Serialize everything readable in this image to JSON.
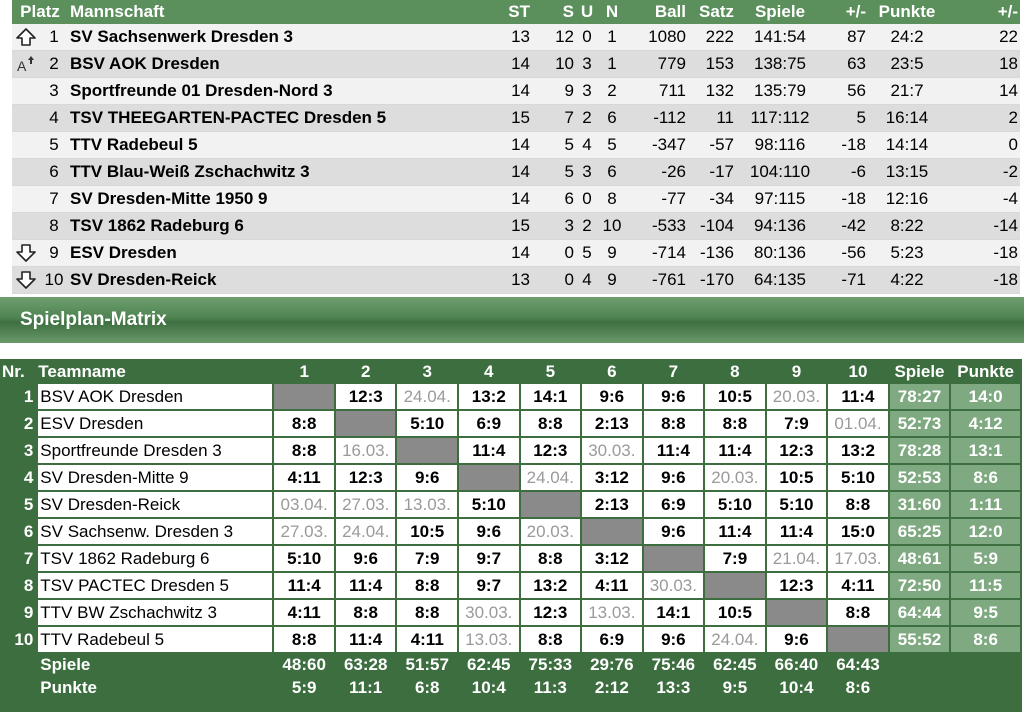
{
  "standings": {
    "headers": [
      "Platz",
      "Mannschaft",
      "ST",
      "S",
      "U",
      "N",
      "Ball",
      "Satz",
      "Spiele",
      "+/-",
      "Punkte",
      "+/-"
    ],
    "rows": [
      {
        "trend": "arrow-up-icon",
        "platz": "1",
        "team": "SV Sachsenwerk Dresden 3",
        "st": "13",
        "s": "12",
        "u": "0",
        "n": "1",
        "ball": "1080",
        "satz": "222",
        "spiele": "141:54",
        "diff": "87",
        "punkte": "24:2",
        "pdiff": "22"
      },
      {
        "trend": "promotion-relegation-icon",
        "platz": "2",
        "team": "BSV AOK Dresden",
        "st": "14",
        "s": "10",
        "u": "3",
        "n": "1",
        "ball": "779",
        "satz": "153",
        "spiele": "138:75",
        "diff": "63",
        "punkte": "23:5",
        "pdiff": "18"
      },
      {
        "trend": "",
        "platz": "3",
        "team": "Sportfreunde 01 Dresden-Nord 3",
        "st": "14",
        "s": "9",
        "u": "3",
        "n": "2",
        "ball": "711",
        "satz": "132",
        "spiele": "135:79",
        "diff": "56",
        "punkte": "21:7",
        "pdiff": "14"
      },
      {
        "trend": "",
        "platz": "4",
        "team": "TSV THEEGARTEN-PACTEC Dresden 5",
        "st": "15",
        "s": "7",
        "u": "2",
        "n": "6",
        "ball": "-112",
        "satz": "11",
        "spiele": "117:112",
        "diff": "5",
        "punkte": "16:14",
        "pdiff": "2"
      },
      {
        "trend": "",
        "platz": "5",
        "team": "TTV Radebeul 5",
        "st": "14",
        "s": "5",
        "u": "4",
        "n": "5",
        "ball": "-347",
        "satz": "-57",
        "spiele": "98:116",
        "diff": "-18",
        "punkte": "14:14",
        "pdiff": "0"
      },
      {
        "trend": "",
        "platz": "6",
        "team": "TTV Blau-Weiß Zschachwitz 3",
        "st": "14",
        "s": "5",
        "u": "3",
        "n": "6",
        "ball": "-26",
        "satz": "-17",
        "spiele": "104:110",
        "diff": "-6",
        "punkte": "13:15",
        "pdiff": "-2"
      },
      {
        "trend": "",
        "platz": "7",
        "team": "SV Dresden-Mitte 1950 9",
        "st": "14",
        "s": "6",
        "u": "0",
        "n": "8",
        "ball": "-77",
        "satz": "-34",
        "spiele": "97:115",
        "diff": "-18",
        "punkte": "12:16",
        "pdiff": "-4"
      },
      {
        "trend": "",
        "platz": "8",
        "team": "TSV 1862 Radeburg 6",
        "st": "15",
        "s": "3",
        "u": "2",
        "n": "10",
        "ball": "-533",
        "satz": "-104",
        "spiele": "94:136",
        "diff": "-42",
        "punkte": "8:22",
        "pdiff": "-14"
      },
      {
        "trend": "arrow-down-icon",
        "platz": "9",
        "team": "ESV Dresden",
        "st": "14",
        "s": "0",
        "u": "5",
        "n": "9",
        "ball": "-714",
        "satz": "-136",
        "spiele": "80:136",
        "diff": "-56",
        "punkte": "5:23",
        "pdiff": "-18"
      },
      {
        "trend": "arrow-down-icon",
        "platz": "10",
        "team": "SV Dresden-Reick",
        "st": "13",
        "s": "0",
        "u": "4",
        "n": "9",
        "ball": "-761",
        "satz": "-170",
        "spiele": "64:135",
        "diff": "-71",
        "punkte": "4:22",
        "pdiff": "-18"
      }
    ]
  },
  "matrix_section": {
    "title": "Spielplan-Matrix"
  },
  "matrix": {
    "header_nr": "Nr.",
    "header_team": "Teamname",
    "header_spiele": "Spiele",
    "header_punkte": "Punkte",
    "columns": [
      "1",
      "2",
      "3",
      "4",
      "5",
      "6",
      "7",
      "8",
      "9",
      "10"
    ],
    "rows": [
      {
        "nr": "1",
        "team": "BSV AOK Dresden",
        "cells": [
          "",
          "12:3",
          "24.04.",
          "13:2",
          "14:1",
          "9:6",
          "9:6",
          "10:5",
          "20.03.",
          "11:4"
        ],
        "spiele": "78:27",
        "punkte": "14:0"
      },
      {
        "nr": "2",
        "team": "ESV Dresden",
        "cells": [
          "8:8",
          "",
          "5:10",
          "6:9",
          "8:8",
          "2:13",
          "8:8",
          "8:8",
          "7:9",
          "01.04."
        ],
        "spiele": "52:73",
        "punkte": "4:12"
      },
      {
        "nr": "3",
        "team": "Sportfreunde Dresden 3",
        "cells": [
          "8:8",
          "16.03.",
          "",
          "11:4",
          "12:3",
          "30.03.",
          "11:4",
          "11:4",
          "12:3",
          "13:2"
        ],
        "spiele": "78:28",
        "punkte": "13:1"
      },
      {
        "nr": "4",
        "team": "SV Dresden-Mitte 9",
        "cells": [
          "4:11",
          "12:3",
          "9:6",
          "",
          "24.04.",
          "3:12",
          "9:6",
          "20.03.",
          "10:5",
          "5:10"
        ],
        "spiele": "52:53",
        "punkte": "8:6"
      },
      {
        "nr": "5",
        "team": "SV Dresden-Reick",
        "cells": [
          "03.04.",
          "27.03.",
          "13.03.",
          "5:10",
          "",
          "2:13",
          "6:9",
          "5:10",
          "5:10",
          "8:8"
        ],
        "spiele": "31:60",
        "punkte": "1:11"
      },
      {
        "nr": "6",
        "team": "SV Sachsenw. Dresden 3",
        "cells": [
          "27.03.",
          "24.04.",
          "10:5",
          "9:6",
          "20.03.",
          "",
          "9:6",
          "11:4",
          "11:4",
          "15:0"
        ],
        "spiele": "65:25",
        "punkte": "12:0"
      },
      {
        "nr": "7",
        "team": "TSV 1862 Radeburg 6",
        "cells": [
          "5:10",
          "9:6",
          "7:9",
          "9:7",
          "8:8",
          "3:12",
          "",
          "7:9",
          "21.04.",
          "17.03."
        ],
        "spiele": "48:61",
        "punkte": "5:9"
      },
      {
        "nr": "8",
        "team": "TSV PACTEC Dresden 5",
        "cells": [
          "11:4",
          "11:4",
          "8:8",
          "9:7",
          "13:2",
          "4:11",
          "30.03.",
          "",
          "12:3",
          "4:11"
        ],
        "spiele": "72:50",
        "punkte": "11:5"
      },
      {
        "nr": "9",
        "team": "TTV BW Zschachwitz 3",
        "cells": [
          "4:11",
          "8:8",
          "8:8",
          "30.03.",
          "12:3",
          "13.03.",
          "14:1",
          "10:5",
          "",
          "8:8"
        ],
        "spiele": "64:44",
        "punkte": "9:5"
      },
      {
        "nr": "10",
        "team": "TTV Radebeul 5",
        "cells": [
          "8:8",
          "11:4",
          "4:11",
          "13.03.",
          "8:8",
          "6:9",
          "9:6",
          "24.04.",
          "9:6",
          ""
        ],
        "spiele": "55:52",
        "punkte": "8:6"
      }
    ],
    "footer_spiele_label": "Spiele",
    "footer_spiele": [
      "48:60",
      "63:28",
      "51:57",
      "62:45",
      "75:33",
      "29:76",
      "75:46",
      "62:45",
      "66:40",
      "64:43"
    ],
    "footer_punkte_label": "Punkte",
    "footer_punkte": [
      "5:9",
      "11:1",
      "6:8",
      "10:4",
      "11:3",
      "2:12",
      "13:3",
      "9:5",
      "10:4",
      "8:6"
    ]
  }
}
